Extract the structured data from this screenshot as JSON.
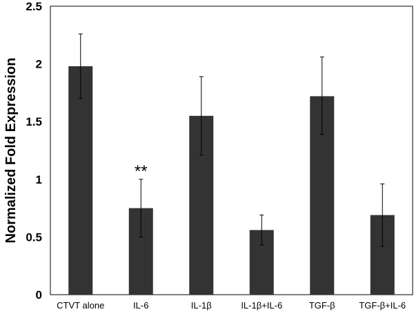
{
  "chart_data": {
    "type": "bar",
    "title": "",
    "xlabel": "",
    "ylabel": "Normalized Fold Expression",
    "ylim": [
      0,
      2.5
    ],
    "yticks": [
      "0",
      "0.5",
      "1",
      "1.5",
      "2",
      "2.5"
    ],
    "ytick_values": [
      0,
      0.5,
      1,
      1.5,
      2,
      2.5
    ],
    "grid": false,
    "categories": [
      "CTVT alone",
      "IL-6",
      "IL-1β",
      "IL-1β+IL-6",
      "TGF-β",
      "TGF-β+IL-6"
    ],
    "values": [
      1.98,
      0.75,
      1.55,
      0.56,
      1.72,
      0.69
    ],
    "error_upper": [
      2.26,
      1.0,
      1.89,
      0.69,
      2.06,
      0.96
    ],
    "error_lower": [
      1.7,
      0.5,
      1.21,
      0.43,
      1.39,
      0.42
    ],
    "bar_color": "#333333",
    "annotations": [
      {
        "category": "IL-6",
        "text": "**"
      }
    ]
  }
}
